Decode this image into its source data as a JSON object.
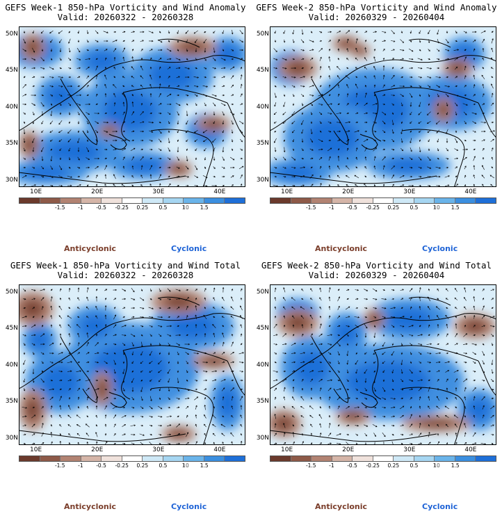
{
  "panels": [
    {
      "title": "GEFS Week-1 850-hPa Vorticity and Wind Anomaly",
      "valid": "Valid: 20260322 - 20260328"
    },
    {
      "title": "GEFS Week-2 850-hPa Vorticity and Wind Anomaly",
      "valid": "Valid: 20260329 - 20260404"
    },
    {
      "title": "GEFS Week-1 850-hPa Vorticity and Wind Total",
      "valid": "Valid: 20260322 - 20260328"
    },
    {
      "title": "GEFS Week-2 850-hPa Vorticity and Wind Total",
      "valid": "Valid: 20260329 - 20260404"
    }
  ],
  "lat_labels": [
    "50N",
    "45N",
    "40N",
    "35N",
    "30N"
  ],
  "lon_labels": [
    "10E",
    "20E",
    "30E",
    "40E"
  ],
  "colorbar": {
    "labels": [
      "-1.5",
      "-1",
      "-0.5",
      "-0.25",
      "0.25",
      "0.5",
      "1",
      "1.5"
    ],
    "scale_note": "10",
    "colors": [
      "#6b3a2c",
      "#8e5a48",
      "#b28372",
      "#d5b5a8",
      "#f0e2dc",
      "#ffffff",
      "#cfe9f7",
      "#a6d6f2",
      "#6ab4ea",
      "#3b8fe0",
      "#1e6fd8"
    ]
  },
  "legend": {
    "anticyclonic": "Anticyclonic",
    "cyclonic": "Cyclonic"
  }
}
